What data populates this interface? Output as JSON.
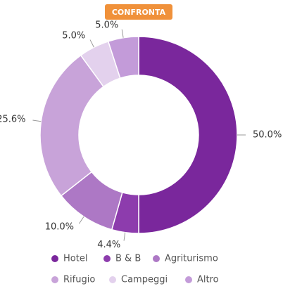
{
  "button": "CONFRONTA",
  "chart_data": {
    "type": "donut",
    "categories": [
      "Hotel",
      "B & B",
      "Agriturismo",
      "Rifugio",
      "Campeggi",
      "Altro"
    ],
    "values": [
      50.0,
      4.4,
      10.0,
      25.6,
      5.0,
      5.0
    ],
    "value_labels": [
      "50.0%",
      "4.4%",
      "10.0%",
      "25.6%",
      "5.0%",
      "5.0%"
    ],
    "colors": [
      "#7a279c",
      "#8d3cad",
      "#ad78c5",
      "#c8a3d9",
      "#e3d1ed",
      "#c39bd9"
    ],
    "legend": "bottom"
  }
}
